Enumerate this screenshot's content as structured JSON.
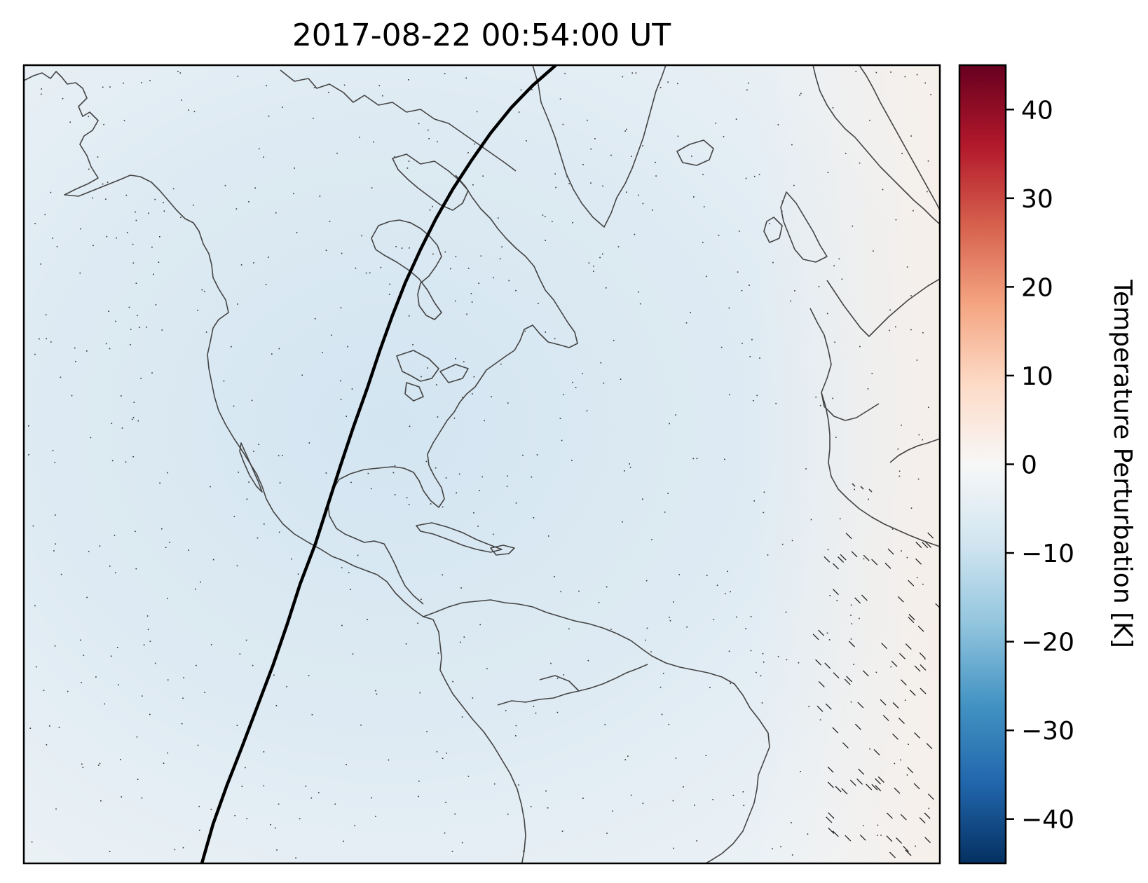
{
  "title": "2017-08-22 00:54:00 UT",
  "colorbar": {
    "label": "Temperature Perturbation [K]",
    "range": [
      -45,
      45
    ],
    "ticks": [
      {
        "value": 40,
        "label": "40"
      },
      {
        "value": 30,
        "label": "30"
      },
      {
        "value": 20,
        "label": "20"
      },
      {
        "value": 10,
        "label": "10"
      },
      {
        "value": 0,
        "label": "0"
      },
      {
        "value": -10,
        "label": "−10"
      },
      {
        "value": -20,
        "label": "−20"
      },
      {
        "value": -30,
        "label": "−30"
      },
      {
        "value": -40,
        "label": "−40"
      }
    ],
    "colormap": [
      "#053061",
      "#2166ac",
      "#4393c3",
      "#92c5de",
      "#d1e5f0",
      "#f7f7f7",
      "#fddbc7",
      "#f4a582",
      "#d6604d",
      "#b2182b",
      "#67001f"
    ]
  },
  "map": {
    "field_color": "#dde9f2",
    "coastline_color": "#444444",
    "path_color": "#000000"
  }
}
